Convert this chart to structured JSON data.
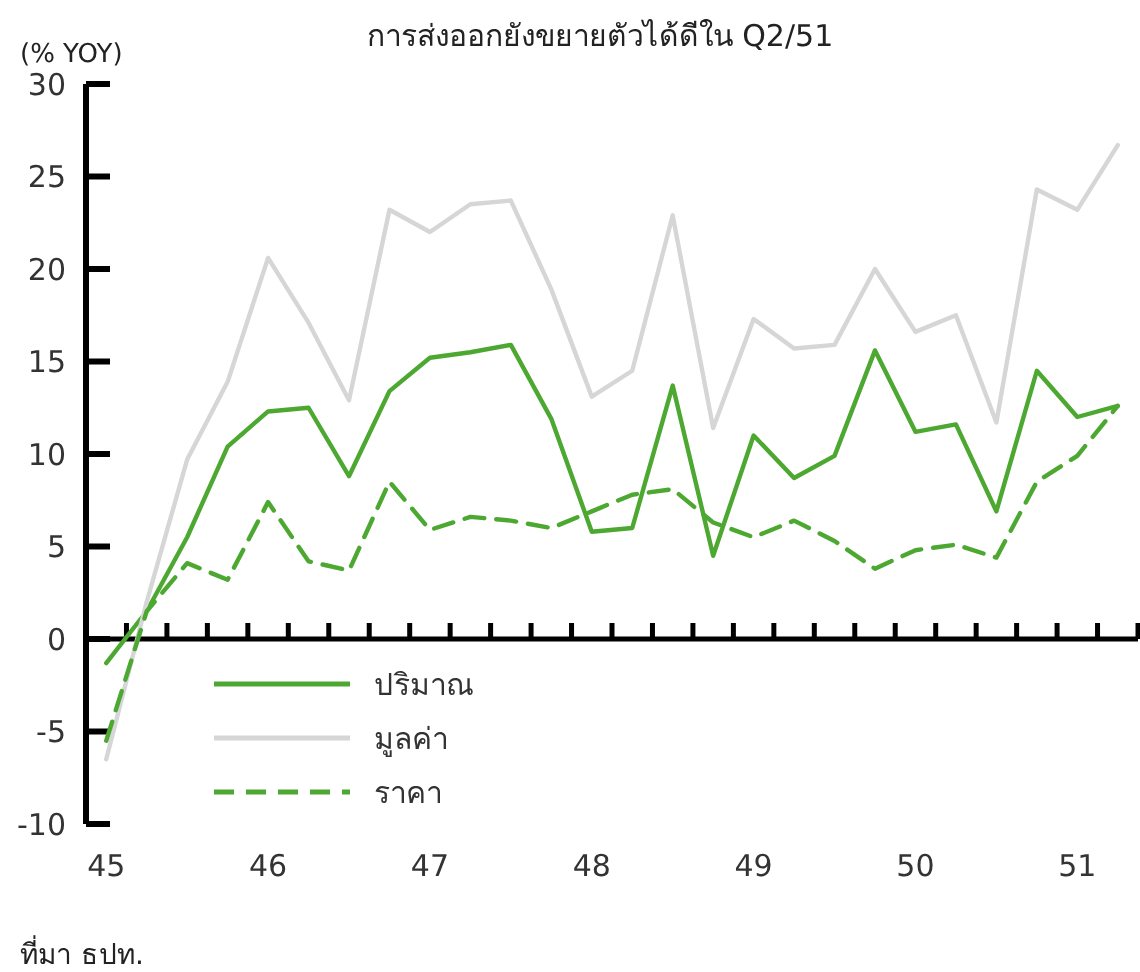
{
  "chart_data": {
    "type": "line",
    "title": "การส่งออกยังขยายตัวได้ดีใน Q2/51",
    "ylabel": "(% YOY)",
    "categories": [
      "45",
      null,
      null,
      null,
      "46",
      null,
      null,
      null,
      "47",
      null,
      null,
      null,
      "48",
      null,
      null,
      null,
      "49",
      null,
      null,
      null,
      "50",
      null,
      null,
      null,
      "51",
      null
    ],
    "series": [
      {
        "name": "ปริมาณ",
        "color": "#4da832",
        "values": [
          -1.3,
          1.5,
          5.5,
          10.4,
          12.3,
          12.5,
          8.8,
          13.4,
          15.2,
          15.5,
          15.9,
          11.9,
          5.8,
          6.0,
          13.7,
          4.5,
          11.0,
          8.7,
          9.9,
          15.6,
          11.2,
          11.6,
          6.9,
          14.5,
          12.0,
          12.6
        ]
      },
      {
        "name": "มูลค่า",
        "color": "#d6d6d6",
        "values": [
          -6.5,
          2.0,
          9.7,
          13.9,
          20.6,
          17.1,
          12.9,
          23.2,
          22.0,
          23.5,
          23.7,
          18.9,
          13.1,
          14.5,
          22.9,
          11.4,
          17.3,
          15.7,
          15.9,
          20.0,
          16.6,
          17.5,
          11.7,
          24.3,
          23.2,
          26.7
        ]
      },
      {
        "name": "ราคา",
        "color": "#4da832",
        "line_style": "dashed",
        "values": [
          -5.5,
          1.5,
          4.1,
          3.2,
          7.4,
          4.2,
          3.7,
          8.5,
          5.9,
          6.6,
          6.4,
          6.0,
          6.9,
          7.8,
          8.1,
          6.3,
          5.5,
          6.4,
          5.3,
          3.8,
          4.8,
          5.1,
          4.4,
          8.5,
          9.9,
          12.6
        ]
      }
    ],
    "ylim": [
      -10,
      30
    ],
    "yticks": [
      -10,
      -5,
      0,
      5,
      10,
      15,
      20,
      25,
      30
    ],
    "legend": "bottom left",
    "annotations": [
      "ที่มา ธปท."
    ]
  }
}
